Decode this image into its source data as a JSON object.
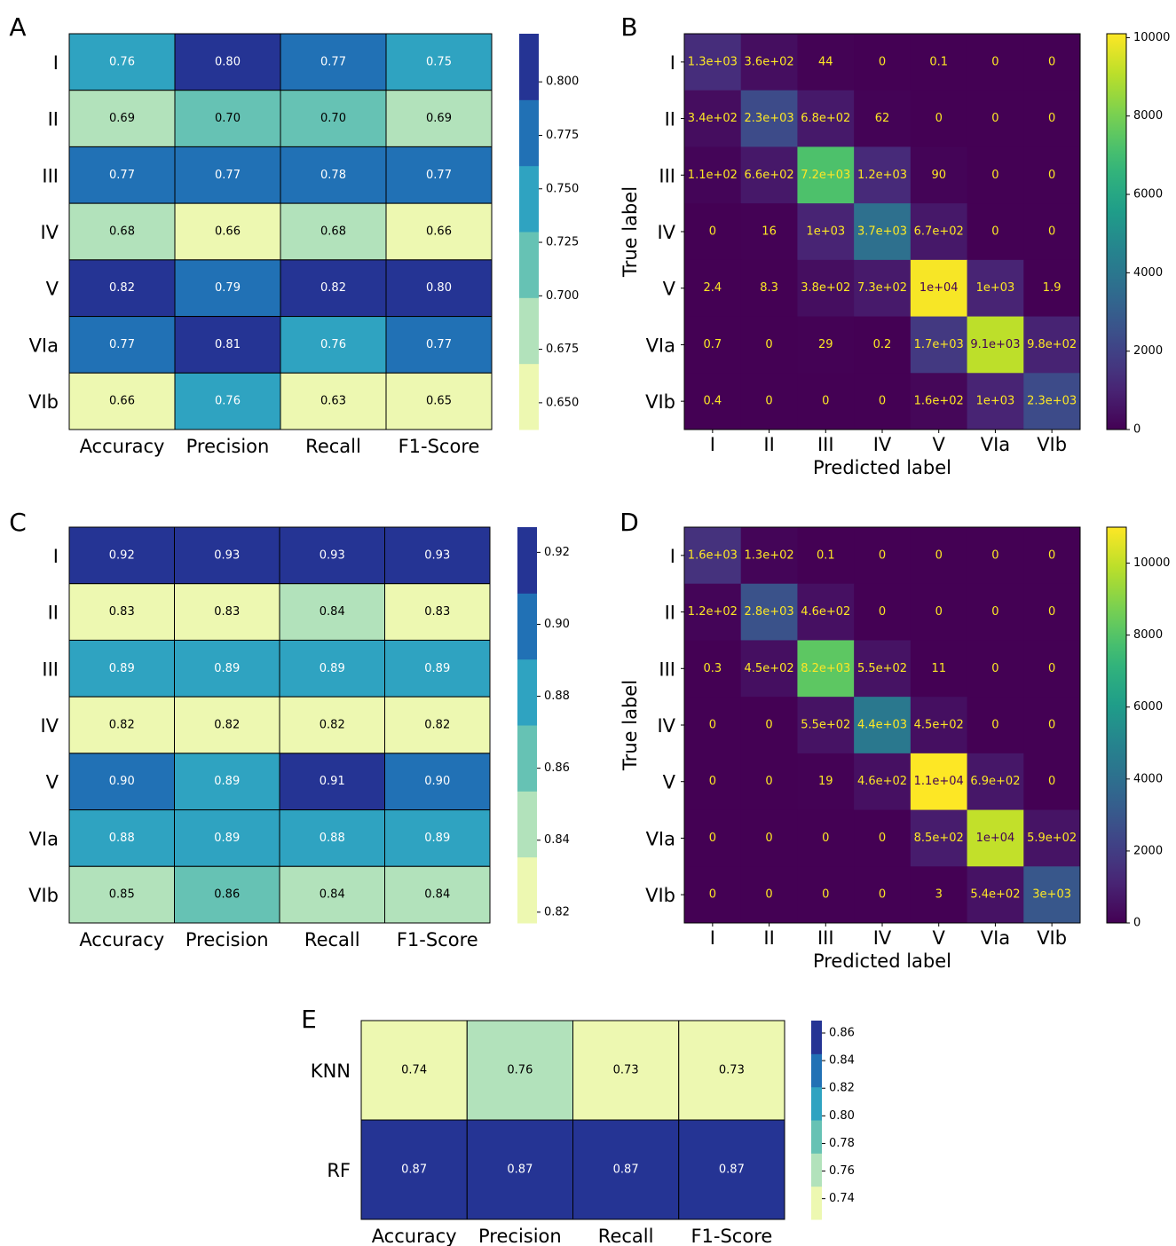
{
  "chart_data": [
    {
      "panel": "A",
      "type": "heatmap",
      "title": "",
      "rows": [
        "I",
        "II",
        "III",
        "IV",
        "V",
        "VIa",
        "VIb"
      ],
      "cols": [
        "Accuracy",
        "Precision",
        "Recall",
        "F1-Score"
      ],
      "values": [
        [
          0.76,
          0.8,
          0.77,
          0.75
        ],
        [
          0.69,
          0.7,
          0.7,
          0.69
        ],
        [
          0.77,
          0.77,
          0.78,
          0.77
        ],
        [
          0.68,
          0.66,
          0.68,
          0.66
        ],
        [
          0.82,
          0.79,
          0.82,
          0.8
        ],
        [
          0.77,
          0.81,
          0.76,
          0.77
        ],
        [
          0.66,
          0.76,
          0.63,
          0.65
        ]
      ],
      "colorbar": {
        "min": 0.6375,
        "max": 0.8225,
        "bins": 6,
        "ticks": [
          "0.650",
          "0.675",
          "0.700",
          "0.725",
          "0.750",
          "0.775",
          "0.800"
        ],
        "tick_values": [
          0.65,
          0.675,
          0.7,
          0.725,
          0.75,
          0.775,
          0.8
        ]
      }
    },
    {
      "panel": "B",
      "type": "heatmap",
      "title": "",
      "xlabel": "Predicted label",
      "ylabel": "True label",
      "labels": [
        "I",
        "II",
        "III",
        "IV",
        "V",
        "VIa",
        "VIb"
      ],
      "values": [
        [
          1300,
          360,
          44,
          0,
          0.1,
          0,
          0
        ],
        [
          340,
          2300,
          680,
          62,
          0,
          0,
          0
        ],
        [
          110,
          660,
          7200,
          1200,
          90,
          0,
          0
        ],
        [
          0,
          16,
          1000,
          3700,
          670,
          0,
          0
        ],
        [
          2.4,
          8.3,
          380,
          730,
          10000,
          1000,
          1.9
        ],
        [
          0.7,
          0,
          29,
          0.2,
          1700,
          9100,
          980
        ],
        [
          0.4,
          0,
          0,
          0,
          160,
          1000,
          2300
        ]
      ],
      "cell_labels": [
        [
          "1.3e+03",
          "3.6e+02",
          "44",
          "0",
          "0.1",
          "0",
          "0"
        ],
        [
          "3.4e+02",
          "2.3e+03",
          "6.8e+02",
          "62",
          "0",
          "0",
          "0"
        ],
        [
          "1.1e+02",
          "6.6e+02",
          "7.2e+03",
          "1.2e+03",
          "90",
          "0",
          "0"
        ],
        [
          "0",
          "16",
          "1e+03",
          "3.7e+03",
          "6.7e+02",
          "0",
          "0"
        ],
        [
          "2.4",
          "8.3",
          "3.8e+02",
          "7.3e+02",
          "1e+04",
          "1e+03",
          "1.9"
        ],
        [
          "0.7",
          "0",
          "29",
          "0.2",
          "1.7e+03",
          "9.1e+03",
          "9.8e+02"
        ],
        [
          "0.4",
          "0",
          "0",
          "0",
          "1.6e+02",
          "1e+03",
          "2.3e+03"
        ]
      ],
      "colorbar": {
        "min": 0,
        "max": 10100,
        "ticks": [
          "0",
          "2000",
          "4000",
          "6000",
          "8000",
          "10000"
        ],
        "tick_values": [
          0,
          2000,
          4000,
          6000,
          8000,
          10000
        ]
      }
    },
    {
      "panel": "C",
      "type": "heatmap",
      "title": "",
      "rows": [
        "I",
        "II",
        "III",
        "IV",
        "V",
        "VIa",
        "VIb"
      ],
      "cols": [
        "Accuracy",
        "Precision",
        "Recall",
        "F1-Score"
      ],
      "values": [
        [
          0.92,
          0.93,
          0.93,
          0.93
        ],
        [
          0.83,
          0.83,
          0.84,
          0.83
        ],
        [
          0.89,
          0.89,
          0.89,
          0.89
        ],
        [
          0.82,
          0.82,
          0.82,
          0.82
        ],
        [
          0.9,
          0.89,
          0.91,
          0.9
        ],
        [
          0.88,
          0.89,
          0.88,
          0.89
        ],
        [
          0.85,
          0.86,
          0.84,
          0.84
        ]
      ],
      "colorbar": {
        "min": 0.817,
        "max": 0.927,
        "bins": 6,
        "ticks": [
          "0.82",
          "0.84",
          "0.86",
          "0.88",
          "0.90",
          "0.92"
        ],
        "tick_values": [
          0.82,
          0.84,
          0.86,
          0.88,
          0.9,
          0.92
        ]
      }
    },
    {
      "panel": "D",
      "type": "heatmap",
      "title": "",
      "xlabel": "Predicted label",
      "ylabel": "True label",
      "labels": [
        "I",
        "II",
        "III",
        "IV",
        "V",
        "VIa",
        "VIb"
      ],
      "values": [
        [
          1600,
          130,
          0.1,
          0,
          0,
          0,
          0
        ],
        [
          120,
          2800,
          460,
          0,
          0,
          0,
          0
        ],
        [
          0.3,
          450,
          8200,
          550,
          11,
          0,
          0
        ],
        [
          0,
          0,
          550,
          4400,
          450,
          0,
          0
        ],
        [
          0,
          0,
          19,
          460,
          11000,
          690,
          0
        ],
        [
          0,
          0,
          0,
          0,
          850,
          10000,
          590
        ],
        [
          0,
          0,
          0,
          0,
          3,
          540,
          3000
        ]
      ],
      "cell_labels": [
        [
          "1.6e+03",
          "1.3e+02",
          "0.1",
          "0",
          "0",
          "0",
          "0"
        ],
        [
          "1.2e+02",
          "2.8e+03",
          "4.6e+02",
          "0",
          "0",
          "0",
          "0"
        ],
        [
          "0.3",
          "4.5e+02",
          "8.2e+03",
          "5.5e+02",
          "11",
          "0",
          "0"
        ],
        [
          "0",
          "0",
          "5.5e+02",
          "4.4e+03",
          "4.5e+02",
          "0",
          "0"
        ],
        [
          "0",
          "0",
          "19",
          "4.6e+02",
          "1.1e+04",
          "6.9e+02",
          "0"
        ],
        [
          "0",
          "0",
          "0",
          "0",
          "8.5e+02",
          "1e+04",
          "5.9e+02"
        ],
        [
          "0",
          "0",
          "0",
          "0",
          "3",
          "5.4e+02",
          "3e+03"
        ]
      ],
      "colorbar": {
        "min": 0,
        "max": 11000,
        "ticks": [
          "0",
          "2000",
          "4000",
          "6000",
          "8000",
          "10000"
        ],
        "tick_values": [
          0,
          2000,
          4000,
          6000,
          8000,
          10000
        ]
      }
    },
    {
      "panel": "E",
      "type": "heatmap",
      "title": "",
      "rows": [
        "KNN",
        "RF"
      ],
      "cols": [
        "Accuracy",
        "Precision",
        "Recall",
        "F1-Score"
      ],
      "values": [
        [
          0.74,
          0.76,
          0.73,
          0.73
        ],
        [
          0.87,
          0.87,
          0.87,
          0.87
        ]
      ],
      "colorbar": {
        "min": 0.725,
        "max": 0.869,
        "bins": 6,
        "ticks": [
          "0.74",
          "0.76",
          "0.78",
          "0.80",
          "0.82",
          "0.84",
          "0.86"
        ],
        "tick_values": [
          0.74,
          0.76,
          0.78,
          0.8,
          0.82,
          0.84,
          0.86
        ]
      }
    }
  ]
}
